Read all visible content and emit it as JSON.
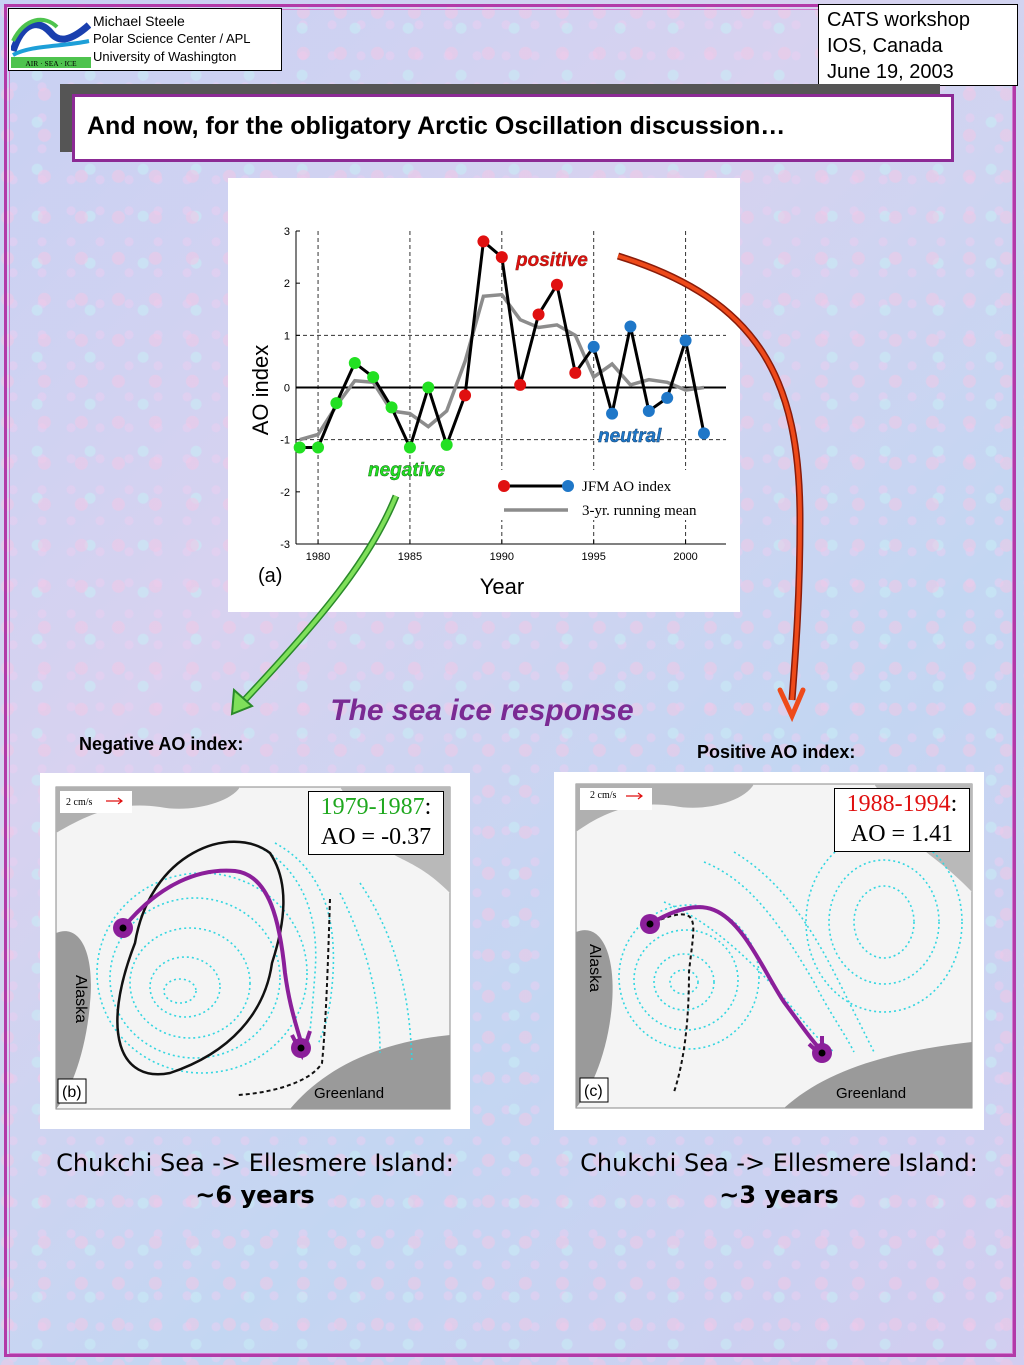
{
  "header": {
    "logo_text": "AIR · SEA · ICE",
    "author_name": "Michael Steele",
    "affiliation_1": "Polar Science Center / APL",
    "affiliation_2": "University of Washington",
    "event_name": "CATS workshop",
    "event_place": "IOS, Canada",
    "event_date": "June 19, 2003"
  },
  "title": "And now, for the obligatory Arctic Oscillation discussion…",
  "chart_data": {
    "type": "line",
    "panel_label": "(a)",
    "xlabel": "Year",
    "ylabel": "AO index",
    "xlim": [
      1978.8,
      2002.2
    ],
    "ylim": [
      -3,
      3
    ],
    "xticks": [
      1980,
      1985,
      1990,
      1995,
      2000
    ],
    "yticks": [
      -3,
      -2,
      -1,
      0,
      1,
      2,
      3
    ],
    "grid_dashed_x": [
      1980,
      1985,
      1990,
      1995,
      2000
    ],
    "grid_dashed_y": [
      -1,
      1
    ],
    "zero_line": true,
    "series": [
      {
        "name": "JFM AO index",
        "x": [
          1979,
          1980,
          1981,
          1982,
          1983,
          1984,
          1985,
          1986,
          1987,
          1988,
          1989,
          1990,
          1991,
          1992,
          1993,
          1994,
          1995,
          1996,
          1997,
          1998,
          1999,
          2000,
          2001
        ],
        "values": [
          -1.15,
          -1.15,
          -0.3,
          0.47,
          0.2,
          -0.38,
          -1.15,
          0,
          -1.1,
          -0.15,
          2.8,
          2.5,
          0.05,
          1.4,
          1.97,
          0.28,
          0.78,
          -0.5,
          1.17,
          -0.45,
          -0.2,
          0.9,
          -0.88
        ],
        "colors": [
          "green",
          "green",
          "green",
          "green",
          "green",
          "green",
          "green",
          "green",
          "green",
          "red",
          "red",
          "red",
          "red",
          "red",
          "red",
          "red",
          "blue",
          "blue",
          "blue",
          "blue",
          "blue",
          "blue",
          "blue"
        ]
      },
      {
        "name": "3-yr. running mean",
        "x": [
          1979,
          1980,
          1981,
          1982,
          1983,
          1984,
          1985,
          1986,
          1987,
          1988,
          1989,
          1990,
          1991,
          1992,
          1993,
          1994,
          1995,
          1996,
          1997,
          1998,
          1999,
          2000,
          2001
        ],
        "values": [
          -1,
          -0.9,
          -0.35,
          0.13,
          0.1,
          -0.45,
          -0.5,
          -0.75,
          -0.45,
          0.5,
          1.75,
          1.78,
          1.3,
          1.15,
          1.2,
          1.0,
          0.2,
          0.45,
          0.05,
          0.15,
          0.1,
          -0.05,
          0.0
        ]
      }
    ],
    "annotations": {
      "positive": "positive",
      "neutral": "neutral",
      "negative": "negative"
    },
    "colors": {
      "green": "#22e022",
      "red": "#e01010",
      "blue": "#1f77c8",
      "mean": "#8c8c8c"
    }
  },
  "subtitle": "The sea ice response",
  "negative_label": "Negative AO index:",
  "positive_label": "Positive AO index:",
  "map_b": {
    "panel_label": "(b)",
    "scale_label": "2 cm/s",
    "period": "1979-1987",
    "ao_value": "AO = -0.37",
    "land_labels": {
      "alaska": "Alaska",
      "greenland": "Greenland"
    },
    "caption_route": "Chukchi Sea -> Ellesmere Island:",
    "caption_time": "~6 years"
  },
  "map_c": {
    "panel_label": "(c)",
    "scale_label": "2 cm/s",
    "period": "1988-1994",
    "ao_value": "AO = 1.41",
    "land_labels": {
      "alaska": "Alaska",
      "greenland": "Greenland"
    },
    "caption_route": "Chukchi Sea -> Ellesmere Island:",
    "caption_time": "~3 years"
  }
}
